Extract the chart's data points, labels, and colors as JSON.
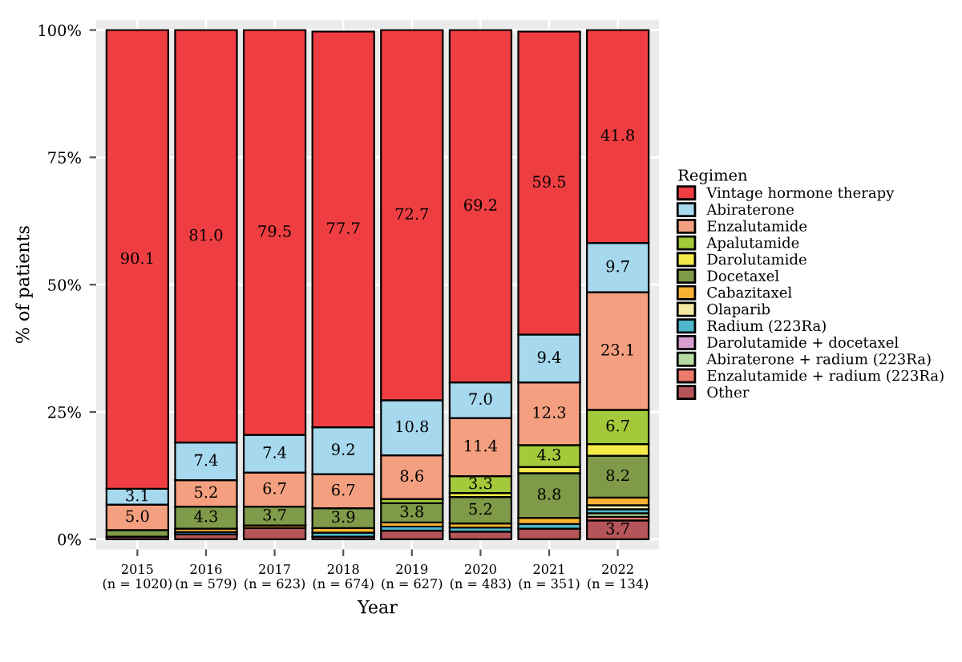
{
  "chart_data": {
    "type": "bar",
    "stacked": true,
    "xlabel": "Year",
    "ylabel": "% of patients",
    "legend_title": "Regimen",
    "legend": "right",
    "grid": true,
    "categories": [
      "2015\n(n = 1020)",
      "2016\n(n = 579)",
      "2017\n(n = 623)",
      "2018\n(n = 674)",
      "2019\n(n = 627)",
      "2020\n(n = 483)",
      "2021\n(n = 351)",
      "2022\n(n = 134)"
    ],
    "ylim": [
      -2,
      102
    ],
    "yticks": [
      {
        "value": 0,
        "label": "0%"
      },
      {
        "value": 25,
        "label": "25%"
      },
      {
        "value": 50,
        "label": "50%"
      },
      {
        "value": 75,
        "label": "75%"
      },
      {
        "value": 100,
        "label": "100%"
      }
    ],
    "series": [
      {
        "name": "Other",
        "color": "#b5555a",
        "values": [
          0.5,
          1.0,
          2.2,
          0.5,
          1.7,
          1.5,
          2.1,
          3.7
        ],
        "value_labels": [
          null,
          null,
          null,
          null,
          null,
          null,
          null,
          "3.7"
        ]
      },
      {
        "name": "Enzalutamide + radium (223Ra)",
        "color": "#ee7a6a",
        "values": [
          null,
          null,
          null,
          null,
          null,
          null,
          null,
          0.7
        ]
      },
      {
        "name": "Abiraterone + radium (223Ra)",
        "color": "#b5dba0",
        "values": [
          null,
          null,
          null,
          null,
          null,
          null,
          null,
          0.7
        ]
      },
      {
        "name": "Darolutamide + docetaxel",
        "color": "#d79ed0",
        "values": [
          null,
          null,
          null,
          null,
          null,
          null,
          null,
          null
        ]
      },
      {
        "name": "Radium (223Ra)",
        "color": "#4db8cc",
        "values": [
          null,
          0.4,
          null,
          0.8,
          0.8,
          0.8,
          0.9,
          0.8
        ]
      },
      {
        "name": "Olaparib",
        "color": "#f3e7a3",
        "values": [
          null,
          null,
          null,
          null,
          null,
          null,
          null,
          0.8
        ]
      },
      {
        "name": "Cabazitaxel",
        "color": "#f8b334",
        "values": [
          null,
          0.7,
          0.5,
          0.9,
          0.8,
          0.8,
          1.2,
          1.5
        ]
      },
      {
        "name": "Docetaxel",
        "color": "#7f9a48",
        "values": [
          1.3,
          4.3,
          3.7,
          3.9,
          3.8,
          5.2,
          8.8,
          8.2
        ],
        "value_labels": [
          null,
          "4.3",
          "3.7",
          "3.9",
          "3.8",
          "5.2",
          "8.8",
          "8.2"
        ]
      },
      {
        "name": "Darolutamide",
        "color": "#f5e94a",
        "values": [
          null,
          null,
          null,
          null,
          null,
          0.8,
          1.2,
          2.3
        ]
      },
      {
        "name": "Apalutamide",
        "color": "#a4c93a",
        "values": [
          null,
          null,
          null,
          null,
          0.8,
          3.3,
          4.3,
          6.7
        ],
        "value_labels": [
          null,
          null,
          null,
          null,
          null,
          "3.3",
          "4.3",
          "6.7"
        ]
      },
      {
        "name": "Enzalutamide",
        "color": "#f4a080",
        "values": [
          5.0,
          5.2,
          6.7,
          6.7,
          8.6,
          11.4,
          12.3,
          23.1
        ],
        "value_labels": [
          "5.0",
          "5.2",
          "6.7",
          "6.7",
          "8.6",
          "11.4",
          "12.3",
          "23.1"
        ]
      },
      {
        "name": "Abiraterone",
        "color": "#a6d8ee",
        "values": [
          3.1,
          7.4,
          7.4,
          9.2,
          10.8,
          7.0,
          9.4,
          9.7
        ],
        "value_labels": [
          "3.1",
          "7.4",
          "7.4",
          "9.2",
          "10.8",
          "7.0",
          "9.4",
          "9.7"
        ]
      },
      {
        "name": "Vintage hormone therapy",
        "color": "#ef3e42",
        "values": [
          90.1,
          81.0,
          79.5,
          77.7,
          72.7,
          69.2,
          59.5,
          41.8
        ],
        "value_labels": [
          "90.1",
          "81.0",
          "79.5",
          "77.7",
          "72.7",
          "69.2",
          "59.5",
          "41.8"
        ]
      }
    ]
  }
}
